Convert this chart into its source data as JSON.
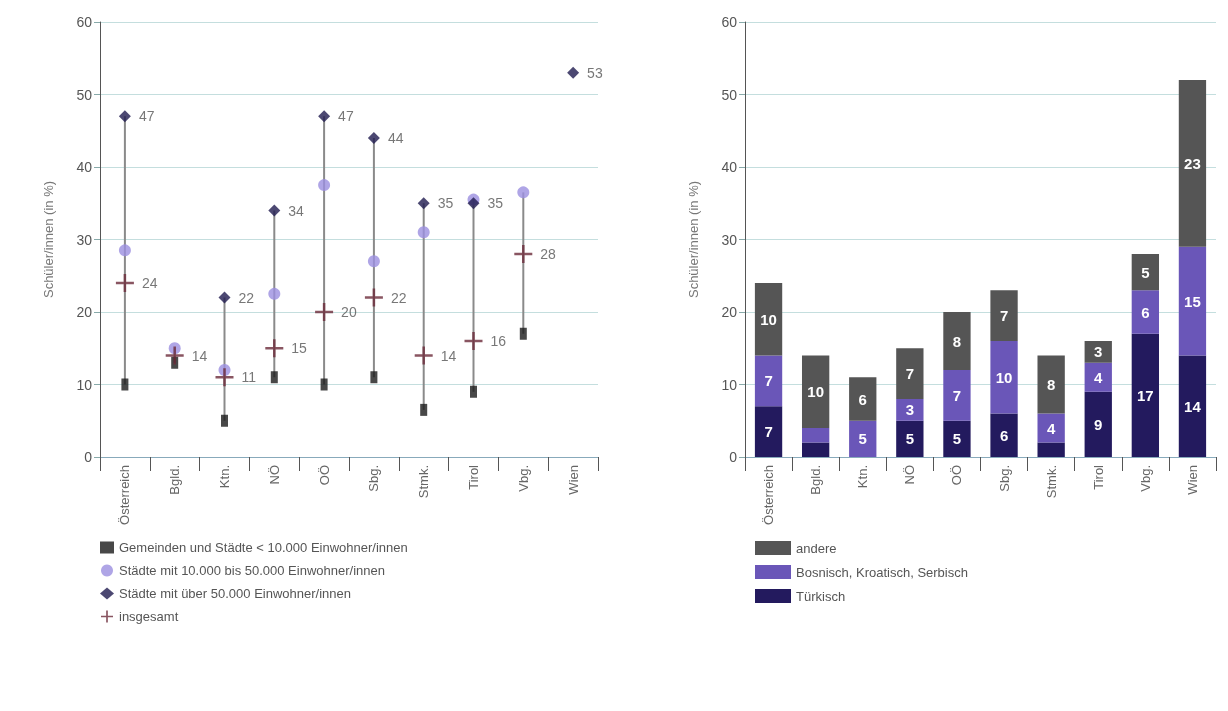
{
  "chart_data": [
    {
      "type": "scatter",
      "ylabel": "Schüler/innen (in %)",
      "categories": [
        "Österreich",
        "Bgld.",
        "Ktn.",
        "NÖ",
        "OÖ",
        "Sbg.",
        "Stmk.",
        "Tirol",
        "Vbg.",
        "Wien"
      ],
      "series": [
        {
          "name": "Gemeinden und Städte < 10.000 Einwohner/innen",
          "color": "#1a1a1a",
          "marker": "square",
          "values": [
            10,
            13,
            5,
            11,
            10,
            11,
            6.5,
            9,
            17,
            null
          ]
        },
        {
          "name": "Städte mit 10.000 bis 50.000 Einwohner/innen",
          "color": "#9b8fe0",
          "marker": "circle",
          "values": [
            28.5,
            15,
            12,
            22.5,
            37.5,
            27,
            31,
            35.5,
            36.5,
            null
          ]
        },
        {
          "name": "Städte mit über 50.000 Einwohner/innen",
          "color": "#1f1a4f",
          "marker": "diamond",
          "values": [
            47,
            null,
            22,
            34,
            47,
            44,
            35,
            35,
            null,
            53
          ],
          "value_labels": [
            "47",
            null,
            "22",
            "34",
            "47",
            "44",
            "35",
            "35",
            null,
            "53"
          ]
        },
        {
          "name": "insgesamt",
          "color": "#6b2a3a",
          "marker": "cross",
          "values": [
            24,
            14,
            11,
            15,
            20,
            22,
            14,
            16,
            28,
            null
          ],
          "value_labels": [
            "24",
            "14",
            "11",
            "15",
            "20",
            "22",
            "14",
            "16",
            "28",
            null
          ]
        }
      ],
      "ylim": [
        0,
        60
      ],
      "yticks": [
        0,
        10,
        20,
        30,
        40,
        50,
        60
      ],
      "grid": "y",
      "legend": "bottom"
    },
    {
      "type": "bar",
      "stacked": true,
      "ylabel": "Schüler/innen (in %)",
      "categories": [
        "Österreich",
        "Bgld.",
        "Ktn.",
        "NÖ",
        "OÖ",
        "Sbg.",
        "Stmk.",
        "Tirol",
        "Vbg.",
        "Wien"
      ],
      "series": [
        {
          "name": "Türkisch",
          "color": "#231a5e",
          "values": [
            7,
            2,
            null,
            5,
            5,
            6,
            2,
            9,
            17,
            14
          ],
          "value_labels": [
            "7",
            null,
            null,
            "5",
            "5",
            "6",
            null,
            "9",
            "17",
            "14"
          ]
        },
        {
          "name": "Bosnisch, Kroatisch, Serbisch",
          "color": "#6a56b8",
          "values": [
            7,
            2,
            5,
            3,
            7,
            10,
            4,
            4,
            6,
            15
          ],
          "value_labels": [
            "7",
            null,
            "5",
            "3",
            "7",
            "10",
            "4",
            "4",
            "6",
            "15"
          ]
        },
        {
          "name": "andere",
          "color": "#555555",
          "values": [
            10,
            10,
            6,
            7,
            8,
            7,
            8,
            3,
            5,
            23
          ],
          "value_labels": [
            "10",
            "10",
            "6",
            "7",
            "8",
            "7",
            "8",
            "3",
            "5",
            "23"
          ]
        }
      ],
      "ylim": [
        0,
        60
      ],
      "yticks": [
        0,
        10,
        20,
        30,
        40,
        50,
        60
      ],
      "grid": "y",
      "legend": "bottom"
    }
  ]
}
